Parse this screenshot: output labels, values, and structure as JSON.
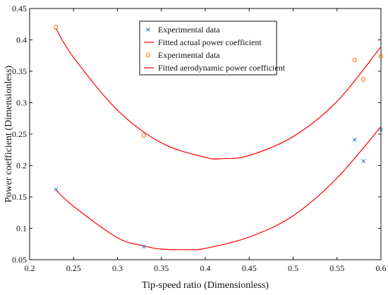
{
  "chart_data": {
    "type": "scatter",
    "xlabel": "Tip-speed ratio (Dimensionless)",
    "ylabel": "Power coefficient (Dimensionless)",
    "xlim": [
      0.2,
      0.6
    ],
    "ylim": [
      0.05,
      0.45
    ],
    "xticks": [
      "0.2",
      "0.25",
      "0.3",
      "0.35",
      "0.4",
      "0.45",
      "0.5",
      "0.55",
      "0.6"
    ],
    "yticks": [
      "0.05",
      "0.1",
      "0.15",
      "0.2",
      "0.25",
      "0.3",
      "0.35",
      "0.4",
      "0.45"
    ],
    "legend_position": "top-center",
    "grid": false,
    "series": [
      {
        "name": "Experimental data",
        "kind": "points",
        "marker": "x",
        "color": "#1f77b4",
        "points": [
          {
            "x": 0.23,
            "y": 0.162
          },
          {
            "x": 0.33,
            "y": 0.071
          },
          {
            "x": 0.57,
            "y": 0.241
          },
          {
            "x": 0.58,
            "y": 0.207
          },
          {
            "x": 0.6,
            "y": 0.257
          }
        ]
      },
      {
        "name": "Fitted actual power coefficient",
        "kind": "curve",
        "color": "#ff0000",
        "points": [
          {
            "x": 0.23,
            "y": 0.161
          },
          {
            "x": 0.25,
            "y": 0.135
          },
          {
            "x": 0.3,
            "y": 0.085
          },
          {
            "x": 0.33,
            "y": 0.072
          },
          {
            "x": 0.35,
            "y": 0.067
          },
          {
            "x": 0.38,
            "y": 0.066
          },
          {
            "x": 0.4,
            "y": 0.068
          },
          {
            "x": 0.45,
            "y": 0.086
          },
          {
            "x": 0.5,
            "y": 0.12
          },
          {
            "x": 0.55,
            "y": 0.18
          },
          {
            "x": 0.6,
            "y": 0.262
          }
        ]
      },
      {
        "name": "Experimental data",
        "kind": "points",
        "marker": "o",
        "color": "#ff6a00",
        "points": [
          {
            "x": 0.23,
            "y": 0.42
          },
          {
            "x": 0.33,
            "y": 0.248
          },
          {
            "x": 0.57,
            "y": 0.368
          },
          {
            "x": 0.58,
            "y": 0.337
          },
          {
            "x": 0.6,
            "y": 0.374
          }
        ]
      },
      {
        "name": "Fitted aerodynamic power coefficient",
        "kind": "curve",
        "color": "#ff0000",
        "points": [
          {
            "x": 0.23,
            "y": 0.418
          },
          {
            "x": 0.25,
            "y": 0.372
          },
          {
            "x": 0.3,
            "y": 0.288
          },
          {
            "x": 0.35,
            "y": 0.236
          },
          {
            "x": 0.4,
            "y": 0.213
          },
          {
            "x": 0.42,
            "y": 0.211
          },
          {
            "x": 0.45,
            "y": 0.216
          },
          {
            "x": 0.5,
            "y": 0.246
          },
          {
            "x": 0.55,
            "y": 0.302
          },
          {
            "x": 0.6,
            "y": 0.389
          }
        ]
      }
    ]
  }
}
